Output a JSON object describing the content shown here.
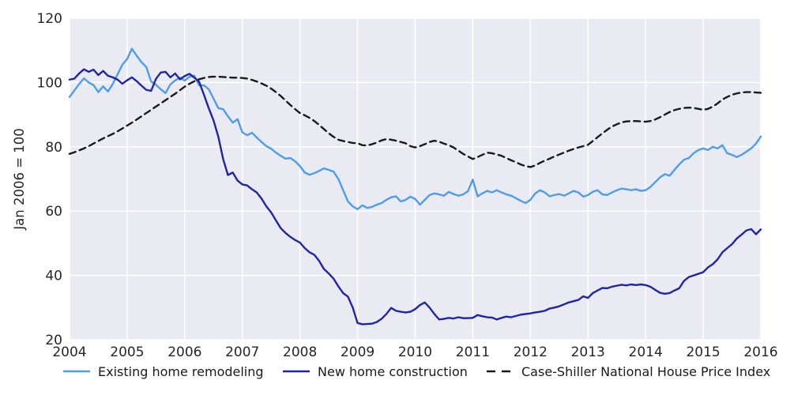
{
  "figure": {
    "background": "#ffffff",
    "plot_background": "#eaeaf2",
    "grid_color": "#ffffff",
    "tick_label_color": "#262626",
    "legend_text_color": "#1a1a1a"
  },
  "chart_data": {
    "type": "line",
    "title": "",
    "xlabel": "",
    "ylabel": "Jan 2006 = 100",
    "x_frequency": "monthly",
    "x_range": [
      2004,
      2016
    ],
    "ylim": [
      20,
      120
    ],
    "x_ticks": [
      "2004",
      "2005",
      "2006",
      "2007",
      "2008",
      "2009",
      "2010",
      "2011",
      "2012",
      "2013",
      "2014",
      "2015",
      "2016"
    ],
    "y_ticks": [
      20,
      40,
      60,
      80,
      100,
      120
    ],
    "grid": true,
    "legend_position": "bottom",
    "series": [
      {
        "name": "Existing home remodeling",
        "color": "#4f9dea",
        "style": "solid",
        "values": [
          95.5,
          97.5,
          99.5,
          101.3,
          100.0,
          99.2,
          97.0,
          98.8,
          97.2,
          99.5,
          102.5,
          105.5,
          107.3,
          110.5,
          108.3,
          106.3,
          104.8,
          100.3,
          99.3,
          97.9,
          96.7,
          99.4,
          100.6,
          101.5,
          100.6,
          101.8,
          102.1,
          99.1,
          99.1,
          97.9,
          95.0,
          92.0,
          91.7,
          89.5,
          87.5,
          88.6,
          84.5,
          83.6,
          84.4,
          82.9,
          81.5,
          80.2,
          79.4,
          78.2,
          77.2,
          76.3,
          76.5,
          75.5,
          74.0,
          72.0,
          71.3,
          71.8,
          72.5,
          73.3,
          72.8,
          72.3,
          70.0,
          66.5,
          63.0,
          61.5,
          60.6,
          61.8,
          61.0,
          61.3,
          62.0,
          62.5,
          63.5,
          64.3,
          64.6,
          63.0,
          63.5,
          64.5,
          63.8,
          62.0,
          63.5,
          65.0,
          65.5,
          65.2,
          64.8,
          66.0,
          65.3,
          64.8,
          65.2,
          66.2,
          69.8,
          64.6,
          65.5,
          66.3,
          65.8,
          66.5,
          65.8,
          65.2,
          64.8,
          64.0,
          63.2,
          62.5,
          63.5,
          65.5,
          66.5,
          65.8,
          64.6,
          65.0,
          65.3,
          64.8,
          65.5,
          66.3,
          65.8,
          64.5,
          65.0,
          66.0,
          66.5,
          65.2,
          65.0,
          65.8,
          66.5,
          67.0,
          66.8,
          66.5,
          66.8,
          66.3,
          66.5,
          67.5,
          69.0,
          70.5,
          71.5,
          71.0,
          72.8,
          74.5,
          76.0,
          76.5,
          78.0,
          79.0,
          79.5,
          79.0,
          80.0,
          79.5,
          80.5,
          78.0,
          77.5,
          76.8,
          77.5,
          78.5,
          79.5,
          81.0,
          83.2
        ]
      },
      {
        "name": "New home construction",
        "color": "#2025a8",
        "style": "solid",
        "values": [
          100.9,
          101.2,
          102.8,
          104.1,
          103.3,
          104.0,
          102.3,
          103.6,
          102.1,
          101.6,
          100.9,
          99.6,
          100.7,
          101.6,
          100.4,
          99.0,
          97.7,
          97.4,
          101.1,
          103.1,
          103.3,
          101.6,
          102.8,
          101.0,
          102.0,
          102.7,
          101.5,
          100.2,
          96.2,
          92.0,
          88.2,
          83.1,
          76.2,
          71.2,
          72.0,
          69.5,
          68.3,
          68.0,
          66.8,
          65.8,
          63.9,
          61.5,
          59.6,
          57.1,
          54.7,
          53.2,
          52.0,
          51.0,
          50.2,
          48.5,
          47.2,
          46.4,
          44.5,
          42.0,
          40.6,
          39.0,
          36.6,
          34.5,
          33.4,
          30.0,
          25.2,
          24.8,
          24.9,
          25.0,
          25.5,
          26.5,
          28.0,
          29.9,
          29.0,
          28.7,
          28.5,
          28.7,
          29.5,
          30.8,
          31.6,
          30.0,
          28.0,
          26.3,
          26.5,
          26.8,
          26.6,
          27.0,
          26.7,
          26.7,
          26.8,
          27.7,
          27.3,
          27.0,
          26.9,
          26.3,
          26.8,
          27.2,
          27.0,
          27.4,
          27.8,
          28.0,
          28.2,
          28.5,
          28.7,
          29.0,
          29.7,
          30.0,
          30.4,
          31.0,
          31.6,
          32.0,
          32.4,
          33.5,
          33.0,
          34.5,
          35.3,
          36.1,
          36.0,
          36.5,
          36.8,
          37.1,
          36.9,
          37.2,
          37.0,
          37.2,
          37.0,
          36.5,
          35.5,
          34.6,
          34.3,
          34.5,
          35.3,
          36.0,
          38.3,
          39.5,
          40.0,
          40.5,
          41.0,
          42.5,
          43.5,
          45.0,
          47.2,
          48.5,
          49.7,
          51.5,
          52.7,
          54.0,
          54.4,
          52.8,
          54.3
        ]
      },
      {
        "name": "Case-Shiller National House Price Index",
        "color": "#1a1a1a",
        "style": "dashed",
        "values": [
          77.8,
          78.3,
          78.9,
          79.5,
          80.2,
          81.0,
          81.8,
          82.6,
          83.3,
          84.0,
          84.8,
          85.7,
          86.6,
          87.5,
          88.5,
          89.5,
          90.5,
          91.5,
          92.5,
          93.5,
          94.5,
          95.5,
          96.5,
          97.6,
          98.7,
          99.6,
          100.4,
          101.0,
          101.4,
          101.7,
          101.8,
          101.8,
          101.7,
          101.6,
          101.5,
          101.5,
          101.4,
          101.2,
          100.8,
          100.3,
          99.7,
          99.0,
          98.1,
          97.0,
          95.8,
          94.4,
          93.0,
          91.7,
          90.5,
          89.8,
          89.0,
          88.0,
          86.8,
          85.5,
          84.2,
          83.1,
          82.2,
          81.8,
          81.5,
          81.2,
          81.1,
          80.5,
          80.4,
          80.8,
          81.3,
          82.0,
          82.4,
          82.2,
          81.9,
          81.5,
          81.1,
          80.2,
          79.8,
          80.2,
          80.8,
          81.5,
          81.9,
          81.6,
          81.0,
          80.5,
          79.8,
          78.8,
          77.8,
          77.0,
          76.2,
          76.8,
          77.5,
          78.2,
          78.0,
          77.6,
          77.2,
          76.5,
          75.8,
          75.2,
          74.5,
          74.0,
          73.7,
          74.2,
          75.0,
          75.7,
          76.3,
          77.0,
          77.6,
          78.2,
          78.8,
          79.3,
          79.8,
          80.2,
          80.6,
          81.8,
          83.0,
          84.2,
          85.3,
          86.3,
          87.0,
          87.6,
          87.9,
          88.0,
          88.0,
          87.9,
          87.8,
          88.0,
          88.5,
          89.2,
          90.0,
          90.8,
          91.4,
          91.8,
          92.1,
          92.2,
          92.1,
          91.8,
          91.5,
          91.8,
          92.5,
          93.5,
          94.7,
          95.5,
          96.2,
          96.6,
          96.9,
          97.0,
          97.0,
          96.9,
          96.8
        ]
      }
    ]
  }
}
